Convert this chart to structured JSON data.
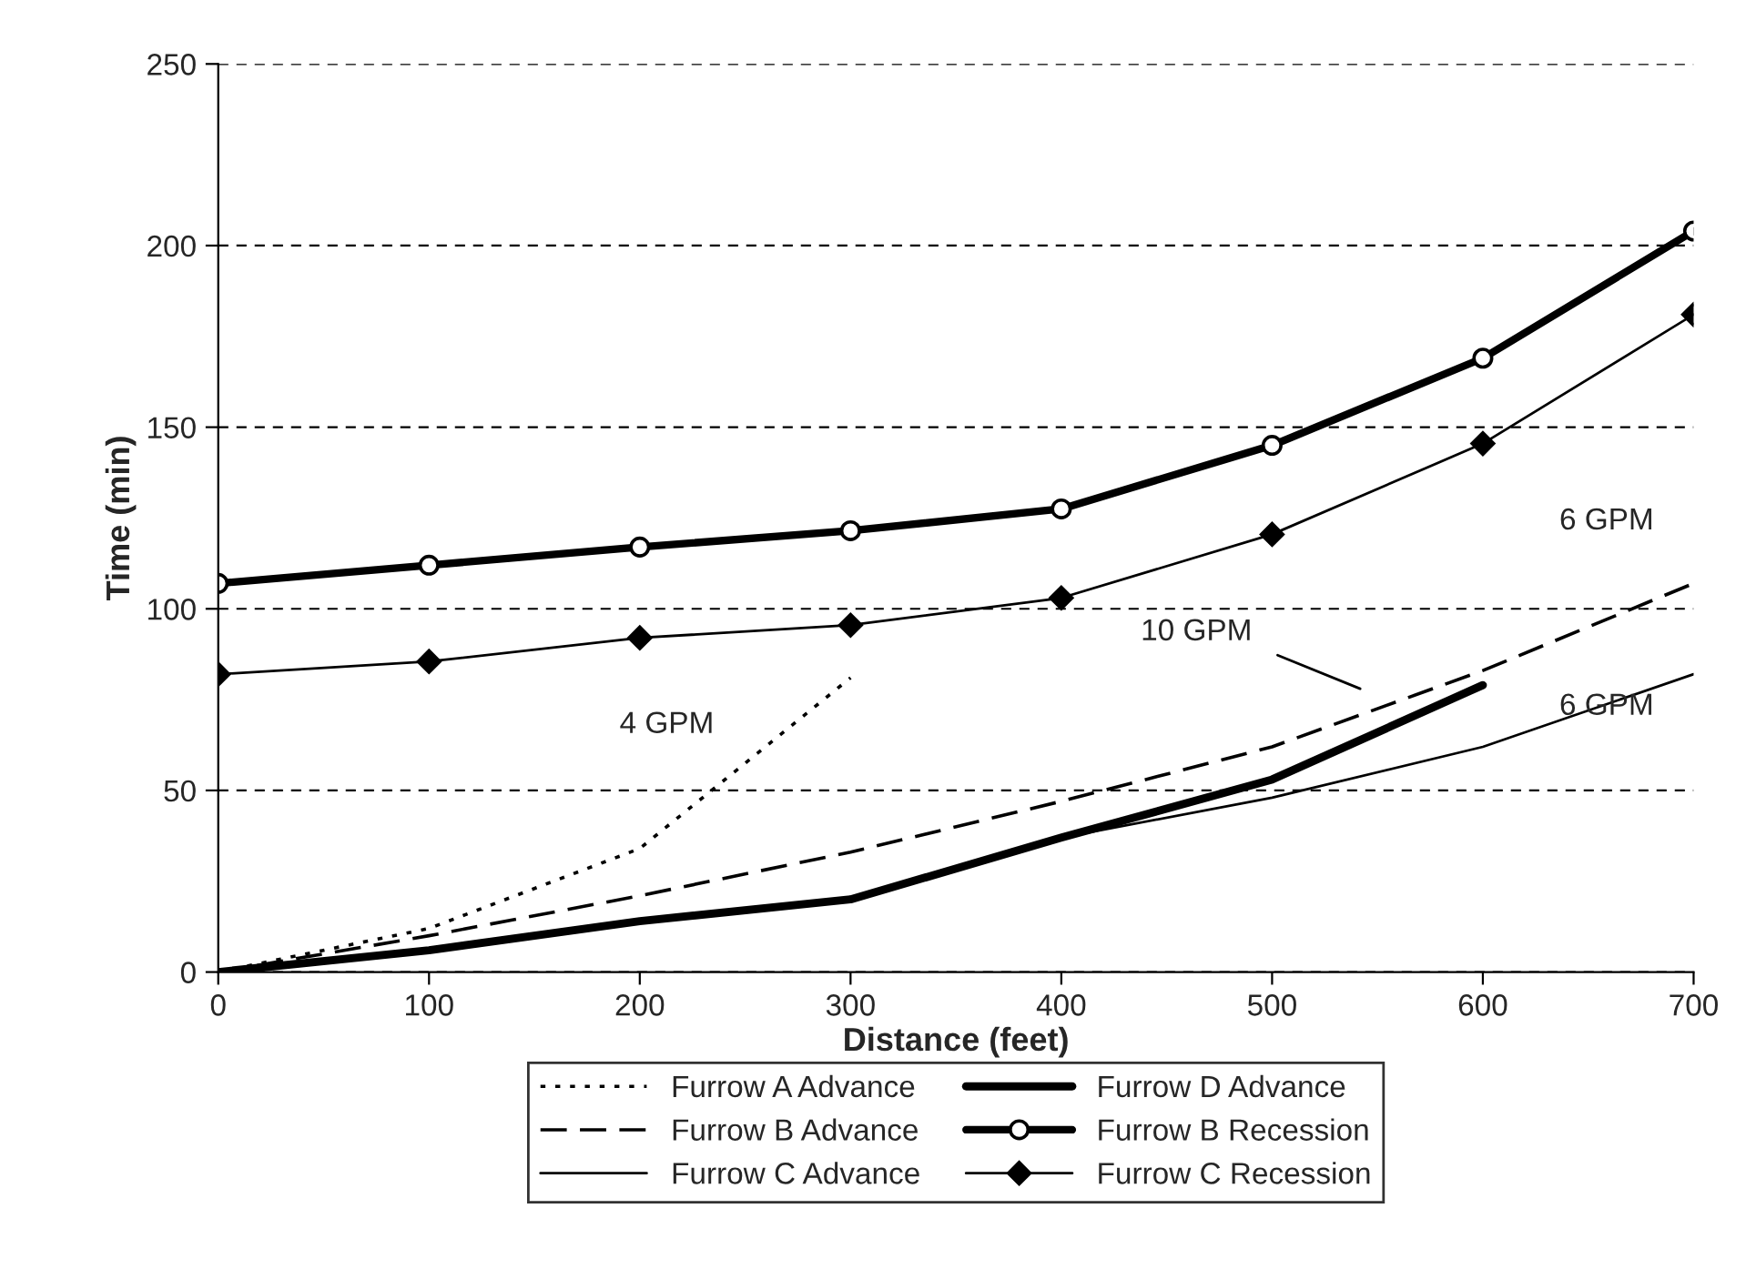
{
  "chart_data": {
    "type": "line",
    "xlabel": "Distance (feet)",
    "ylabel": "Time (min)",
    "x": [
      0,
      100,
      200,
      300,
      400,
      500,
      600,
      700
    ],
    "series": [
      {
        "name": "Furrow A Advance",
        "color": "#000000",
        "line_style": "dotted",
        "marker": "none",
        "x": [
          0,
          100,
          200,
          300
        ],
        "values": [
          0,
          12,
          34,
          81
        ]
      },
      {
        "name": "Furrow B Advance",
        "color": "#000000",
        "line_style": "dashed",
        "marker": "none",
        "values": [
          0,
          10,
          21,
          33,
          47,
          62,
          83,
          107
        ]
      },
      {
        "name": "Furrow C Advance",
        "color": "#000000",
        "line_style": "solid",
        "marker": "none",
        "values": [
          0,
          6,
          14,
          20,
          37,
          48,
          62,
          82
        ]
      },
      {
        "name": "Furrow D Advance",
        "color": "#000000",
        "line_style": "solid",
        "marker": "none",
        "x": [
          0,
          100,
          200,
          300,
          400,
          500,
          600
        ],
        "values": [
          0,
          6,
          14,
          20,
          37,
          53,
          79
        ]
      },
      {
        "name": "Furrow B Recession",
        "color": "#000000",
        "line_style": "solid",
        "marker": "circle",
        "values": [
          107,
          112,
          117,
          121.5,
          127.5,
          145,
          169,
          204
        ]
      },
      {
        "name": "Furrow C Recession",
        "color": "#000000",
        "line_style": "solid",
        "marker": "diamond",
        "values": [
          82,
          85.5,
          92,
          95.5,
          103,
          120.5,
          145.5,
          181
        ]
      }
    ],
    "annotations": [
      "4 GPM",
      "10 GPM",
      "6 GPM",
      "6 GPM"
    ],
    "xlim": [
      0,
      700
    ],
    "xticks": [
      0,
      100,
      200,
      300,
      400,
      500,
      600,
      700
    ],
    "ylim": [
      0,
      250
    ],
    "yticks": [
      0,
      50,
      100,
      150,
      200,
      250
    ],
    "grid": "y",
    "legend": "bottom"
  }
}
